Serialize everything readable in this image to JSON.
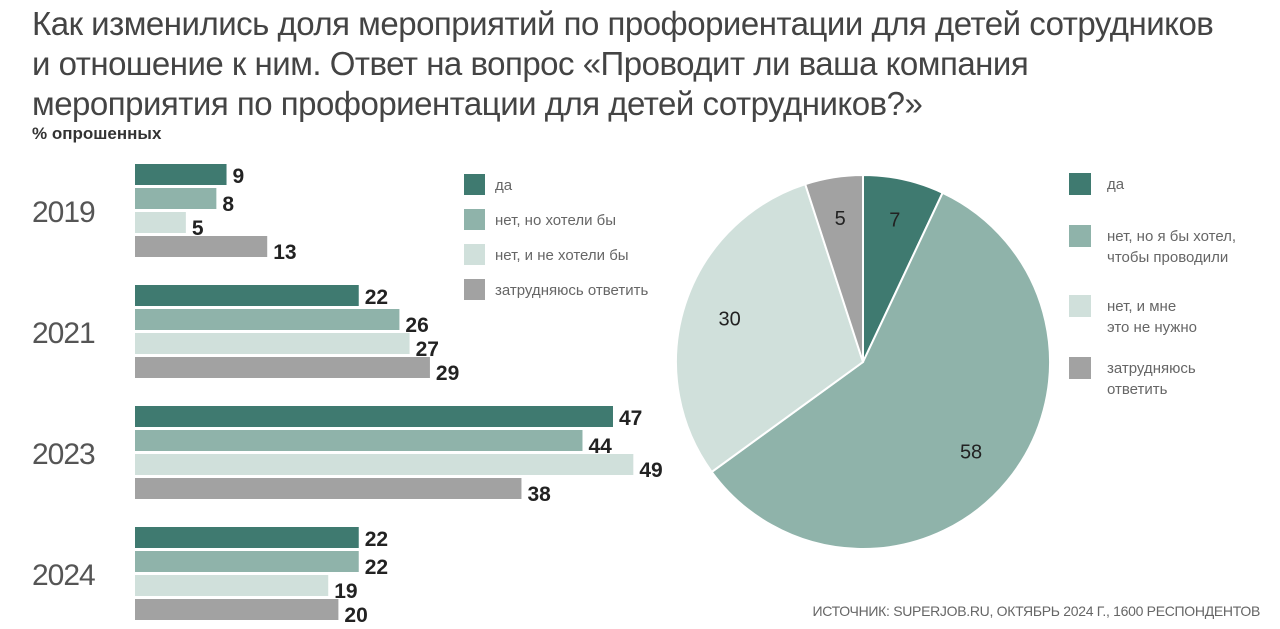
{
  "title": "Как изменились доля мероприятий по профориентации для детей сотрудников и отношение к ним. Ответ на вопрос «Проводит ли ваша компания мероприятия по профориентации для детей сотрудников?»",
  "unit": "% опрошенных",
  "source": "ИСТОЧНИК: SUPERJOB.RU, ОКТЯБРЬ 2024 Г., 1600 РЕСПОНДЕНТОВ",
  "chart_data": [
    {
      "type": "bar",
      "orientation": "horizontal",
      "categories": [
        "2019",
        "2021",
        "2023",
        "2024"
      ],
      "series": [
        {
          "name": "да",
          "color": "#3f7a70",
          "values": [
            9,
            22,
            47,
            22
          ]
        },
        {
          "name": "нет, но хотели бы",
          "color": "#8fb3aa",
          "values": [
            8,
            26,
            44,
            22
          ]
        },
        {
          "name": "нет, и не хотели бы",
          "color": "#d0e0db",
          "values": [
            5,
            27,
            49,
            19
          ]
        },
        {
          "name": "затрудняюсь ответить",
          "color": "#a2a2a2",
          "values": [
            13,
            29,
            38,
            20
          ]
        }
      ],
      "legend": "top-right"
    },
    {
      "type": "pie",
      "slices": [
        {
          "label": "да",
          "value": 7,
          "color": "#3f7a70"
        },
        {
          "label": "нет, но я бы хотел, чтобы проводили",
          "lines": [
            "нет, но я бы хотел,",
            "чтобы проводили"
          ],
          "value": 58,
          "color": "#8fb3aa"
        },
        {
          "label": "нет, и мне это не нужно",
          "lines": [
            "нет, и мне",
            "это не нужно"
          ],
          "value": 30,
          "color": "#d0e0db"
        },
        {
          "label": "затрудняюсь ответить",
          "lines": [
            "затрудняюсь",
            "ответить"
          ],
          "value": 5,
          "color": "#a2a2a2"
        }
      ],
      "legend": "right"
    }
  ]
}
